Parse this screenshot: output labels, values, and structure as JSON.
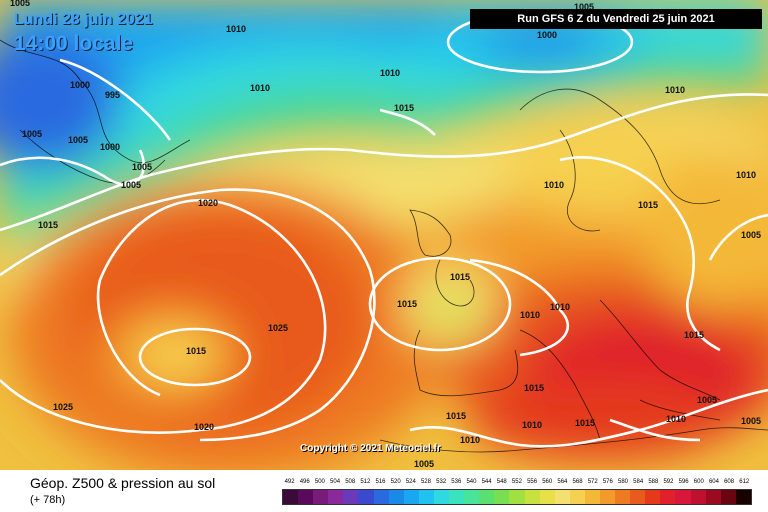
{
  "header": {
    "date_label": "Lundi 28 juin 2021",
    "time_label": "14:00 locale",
    "run_label": "Run GFS 6 Z du Vendredi 25 juin 2021"
  },
  "copyright": "Copyright © 2021 Meteociel.fr",
  "footer": {
    "product": "Géop. Z500 & pression au sol",
    "lead_time": "(+ 78h)"
  },
  "legend": {
    "values": [
      "492",
      "496",
      "500",
      "504",
      "508",
      "512",
      "516",
      "520",
      "524",
      "528",
      "532",
      "536",
      "540",
      "544",
      "548",
      "552",
      "556",
      "560",
      "564",
      "568",
      "572",
      "576",
      "580",
      "584",
      "588",
      "592",
      "596",
      "600",
      "604",
      "608",
      "612"
    ],
    "colors": [
      "#3a0a3a",
      "#5a0a5a",
      "#7a1a7a",
      "#8a2a9a",
      "#6a3aba",
      "#3a4ad0",
      "#2a6ae0",
      "#1a8ae8",
      "#1aa6f0",
      "#22c2f0",
      "#30d8e0",
      "#3ae2c0",
      "#48e49a",
      "#58e070",
      "#78e050",
      "#a0e040",
      "#c8e040",
      "#e8e048",
      "#f4e070",
      "#f6d050",
      "#f4b838",
      "#f29a2a",
      "#ee7a22",
      "#e85a1e",
      "#e43a1a",
      "#e0202a",
      "#d8183a",
      "#c01030",
      "#9a0a20",
      "#6a0410",
      "#1a0000"
    ]
  },
  "isobar_labels": [
    "1005",
    "1010",
    "1000",
    "1010",
    "1010",
    "1015",
    "1000",
    "995",
    "1005",
    "1005",
    "1000",
    "1005",
    "1005",
    "1015",
    "1020",
    "1010",
    "1010",
    "1005",
    "1010",
    "1015",
    "1015",
    "1005",
    "1015",
    "1015",
    "1010",
    "1010",
    "1025",
    "1015",
    "1015",
    "1015",
    "1005",
    "1025",
    "1020",
    "1015",
    "1010",
    "1010",
    "1005",
    "1010",
    "1005"
  ],
  "colors": {
    "header_text": "#3aa0ff",
    "isobar": "#ffffff"
  }
}
